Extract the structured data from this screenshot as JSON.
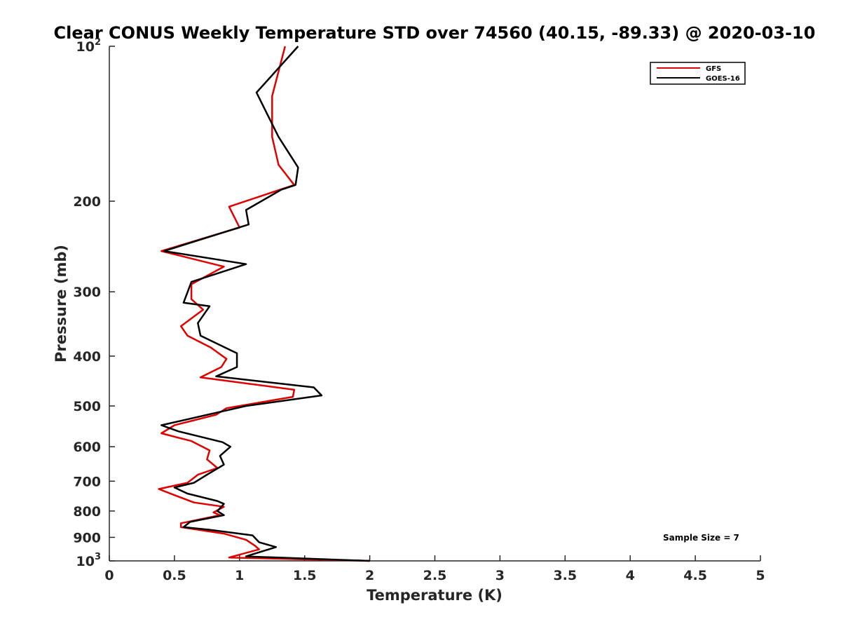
{
  "chart_data": {
    "type": "line",
    "title": "Clear CONUS Weekly Temperature STD over 74560 (40.15, -89.33) @ 2020-03-10",
    "xlabel": "Temperature (K)",
    "ylabel": "Pressure (mb)",
    "xlim": [
      0,
      5
    ],
    "ylim": [
      1000,
      100
    ],
    "yscale": "log",
    "y_reversed": true,
    "grid": false,
    "legend_position": "top-right",
    "x_ticks": [
      "0",
      "0.5",
      "1",
      "1.5",
      "2",
      "2.5",
      "3",
      "3.5",
      "4",
      "4.5",
      "5"
    ],
    "y_ticks": [
      {
        "value": 100,
        "base": "10",
        "exp": "2"
      },
      {
        "value": 200,
        "label": "200"
      },
      {
        "value": 300,
        "label": "300"
      },
      {
        "value": 400,
        "label": "400"
      },
      {
        "value": 500,
        "label": "500"
      },
      {
        "value": 600,
        "label": "600"
      },
      {
        "value": 700,
        "label": "700"
      },
      {
        "value": 800,
        "label": "800"
      },
      {
        "value": 900,
        "label": "900"
      },
      {
        "value": 1000,
        "base": "10",
        "exp": "3"
      }
    ],
    "annotation": "Sample Size = 7",
    "series": [
      {
        "name": "GFS",
        "color": "#e00000",
        "points": [
          [
            1.35,
            100
          ],
          [
            1.25,
            125
          ],
          [
            1.25,
            150
          ],
          [
            1.3,
            170
          ],
          [
            1.42,
            186
          ],
          [
            0.92,
            205
          ],
          [
            1.0,
            225
          ],
          [
            0.4,
            250
          ],
          [
            0.88,
            268
          ],
          [
            0.63,
            290
          ],
          [
            0.63,
            310
          ],
          [
            0.72,
            325
          ],
          [
            0.55,
            350
          ],
          [
            0.6,
            365
          ],
          [
            0.78,
            385
          ],
          [
            0.9,
            405
          ],
          [
            0.86,
            420
          ],
          [
            0.7,
            440
          ],
          [
            1.42,
            465
          ],
          [
            1.41,
            480
          ],
          [
            0.9,
            505
          ],
          [
            0.82,
            520
          ],
          [
            0.5,
            545
          ],
          [
            0.4,
            565
          ],
          [
            0.63,
            585
          ],
          [
            0.77,
            610
          ],
          [
            0.75,
            635
          ],
          [
            0.83,
            660
          ],
          [
            0.68,
            680
          ],
          [
            0.6,
            705
          ],
          [
            0.38,
            725
          ],
          [
            0.5,
            745
          ],
          [
            0.65,
            770
          ],
          [
            0.88,
            785
          ],
          [
            0.8,
            805
          ],
          [
            0.85,
            815
          ],
          [
            0.55,
            845
          ],
          [
            0.55,
            860
          ],
          [
            0.88,
            885
          ],
          [
            1.05,
            910
          ],
          [
            1.12,
            935
          ],
          [
            1.15,
            950
          ],
          [
            0.92,
            985
          ],
          [
            2.0,
            1000
          ]
        ]
      },
      {
        "name": "GOES-16",
        "color": "#000000",
        "points": [
          [
            1.45,
            100
          ],
          [
            1.13,
            123
          ],
          [
            1.3,
            150
          ],
          [
            1.45,
            172
          ],
          [
            1.43,
            186
          ],
          [
            1.32,
            190
          ],
          [
            1.05,
            208
          ],
          [
            1.07,
            222
          ],
          [
            0.42,
            250
          ],
          [
            1.05,
            265
          ],
          [
            0.63,
            287
          ],
          [
            0.57,
            315
          ],
          [
            0.77,
            320
          ],
          [
            0.68,
            345
          ],
          [
            0.7,
            365
          ],
          [
            0.98,
            395
          ],
          [
            0.98,
            420
          ],
          [
            0.82,
            438
          ],
          [
            1.57,
            460
          ],
          [
            1.63,
            477
          ],
          [
            1.05,
            500
          ],
          [
            0.4,
            545
          ],
          [
            0.53,
            560
          ],
          [
            0.87,
            588
          ],
          [
            0.93,
            600
          ],
          [
            0.85,
            625
          ],
          [
            0.88,
            650
          ],
          [
            0.75,
            680
          ],
          [
            0.65,
            705
          ],
          [
            0.5,
            720
          ],
          [
            0.6,
            740
          ],
          [
            0.83,
            765
          ],
          [
            0.88,
            775
          ],
          [
            0.83,
            800
          ],
          [
            0.88,
            815
          ],
          [
            0.62,
            840
          ],
          [
            0.57,
            860
          ],
          [
            0.77,
            870
          ],
          [
            1.1,
            892
          ],
          [
            1.15,
            920
          ],
          [
            1.28,
            940
          ],
          [
            1.05,
            980
          ],
          [
            2.0,
            1000
          ]
        ]
      }
    ]
  }
}
